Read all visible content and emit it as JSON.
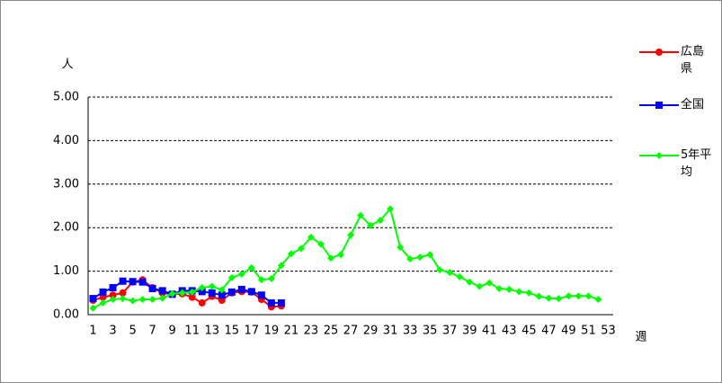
{
  "chart_data": {
    "type": "line",
    "y_label": "人",
    "x_label": "週",
    "categories": [
      "1",
      null,
      "3",
      null,
      "5",
      null,
      "7",
      null,
      "9",
      null,
      "11",
      null,
      "13",
      null,
      "15",
      null,
      "17",
      null,
      "19",
      null,
      "21",
      null,
      "23",
      null,
      "25",
      null,
      "27",
      null,
      "29",
      null,
      "31",
      null,
      "33",
      null,
      "35",
      null,
      "37",
      null,
      "39",
      null,
      "41",
      null,
      "43",
      null,
      "45",
      null,
      "47",
      null,
      "49",
      null,
      "51",
      null,
      "53"
    ],
    "ylim": [
      0,
      5
    ],
    "yticks": [
      {
        "value": 0,
        "label": "0.00"
      },
      {
        "value": 1,
        "label": "1.00"
      },
      {
        "value": 2,
        "label": "2.00"
      },
      {
        "value": 3,
        "label": "3.00"
      },
      {
        "value": 4,
        "label": "4.00"
      },
      {
        "value": 5,
        "label": "5.00"
      }
    ],
    "grid": true,
    "legend": "right",
    "series": [
      {
        "name": "広島県",
        "color": "#ff0000",
        "marker": "circle",
        "values": [
          0.33,
          0.4,
          0.45,
          0.5,
          0.75,
          0.8,
          0.62,
          0.5,
          0.47,
          0.48,
          0.4,
          0.27,
          0.42,
          0.33,
          0.5,
          0.53,
          0.52,
          0.35,
          0.18,
          0.2,
          null,
          null,
          null,
          null,
          null,
          null,
          null,
          null,
          null,
          null,
          null,
          null,
          null,
          null,
          null,
          null,
          null,
          null,
          null,
          null,
          null,
          null,
          null,
          null,
          null,
          null,
          null,
          null,
          null,
          null,
          null,
          null,
          null
        ]
      },
      {
        "name": "全国",
        "color": "#0000ff",
        "marker": "square",
        "values": [
          0.37,
          0.52,
          0.62,
          0.77,
          0.76,
          0.75,
          0.6,
          0.55,
          0.47,
          0.55,
          0.55,
          0.53,
          0.5,
          0.45,
          0.52,
          0.58,
          0.53,
          0.45,
          0.27,
          0.27,
          null,
          null,
          null,
          null,
          null,
          null,
          null,
          null,
          null,
          null,
          null,
          null,
          null,
          null,
          null,
          null,
          null,
          null,
          null,
          null,
          null,
          null,
          null,
          null,
          null,
          null,
          null,
          null,
          null,
          null,
          null,
          null,
          null
        ]
      },
      {
        "name": "5年平均",
        "color": "#00ff00",
        "marker": "diamond",
        "values": [
          0.15,
          0.27,
          0.35,
          0.37,
          0.32,
          0.35,
          0.35,
          0.38,
          0.48,
          0.5,
          0.52,
          0.62,
          0.65,
          0.57,
          0.85,
          0.93,
          1.08,
          0.8,
          0.83,
          1.13,
          1.4,
          1.52,
          1.78,
          1.62,
          1.3,
          1.38,
          1.83,
          2.28,
          2.05,
          2.17,
          2.43,
          1.55,
          1.28,
          1.32,
          1.38,
          1.03,
          0.97,
          0.87,
          0.75,
          0.65,
          0.73,
          0.6,
          0.58,
          0.53,
          0.5,
          0.42,
          0.38,
          0.37,
          0.43,
          0.43,
          0.43,
          0.35,
          null
        ]
      }
    ]
  }
}
